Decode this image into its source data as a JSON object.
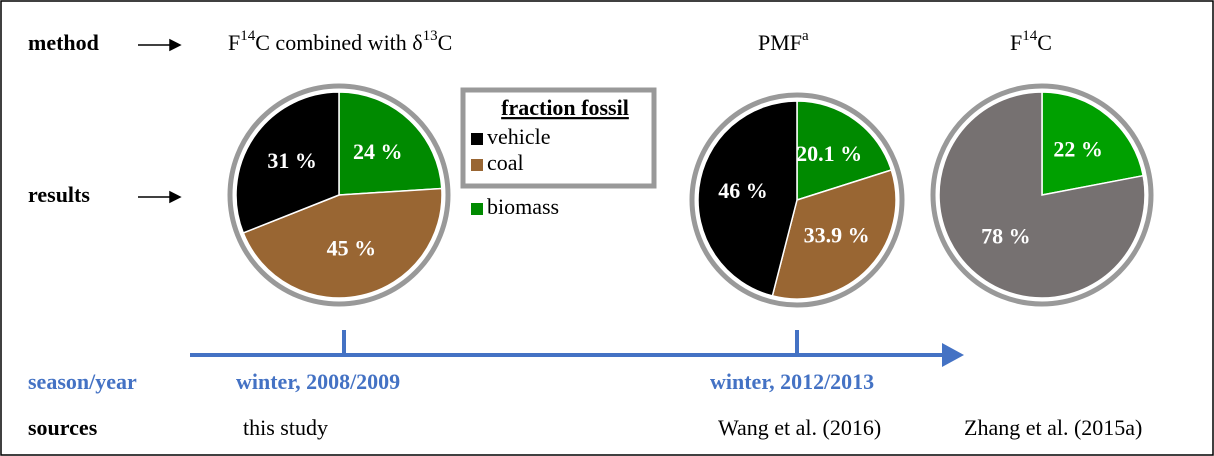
{
  "rows": {
    "method": "method",
    "results": "results",
    "season": "season/year",
    "sources": "sources"
  },
  "methods": [
    [
      "F",
      "14",
      "C combined with δ",
      "13",
      "C"
    ],
    [
      "PMF",
      "a"
    ],
    [
      "F",
      "14",
      "C"
    ]
  ],
  "legend": {
    "title": "fraction fossil",
    "items": [
      {
        "name": "vehicle",
        "color": "#000000"
      },
      {
        "name": "coal",
        "color": "#996633"
      },
      {
        "name": "biomass",
        "color": "#008a00"
      }
    ]
  },
  "chart_data": [
    {
      "type": "pie",
      "values": [
        24,
        45,
        31
      ],
      "value_labels": [
        "24 %",
        "45 %",
        "31 %"
      ],
      "colors": [
        "#008a00",
        "#996633",
        "#000000"
      ]
    },
    {
      "type": "pie",
      "values": [
        20.1,
        33.9,
        46
      ],
      "value_labels": [
        "20.1 %",
        "33.9 %",
        "46 %"
      ],
      "colors": [
        "#008a00",
        "#996633",
        "#000000"
      ]
    },
    {
      "type": "pie",
      "values": [
        22,
        78
      ],
      "value_labels": [
        "22 %",
        "78 %"
      ],
      "colors": [
        "#00a000",
        "#767171"
      ]
    }
  ],
  "seasons": [
    "winter, 2008/2009",
    "winter, 2012/2013"
  ],
  "sources": [
    "this study",
    "Wang et al. (2016)",
    "Zhang et al. (2015a)"
  ]
}
